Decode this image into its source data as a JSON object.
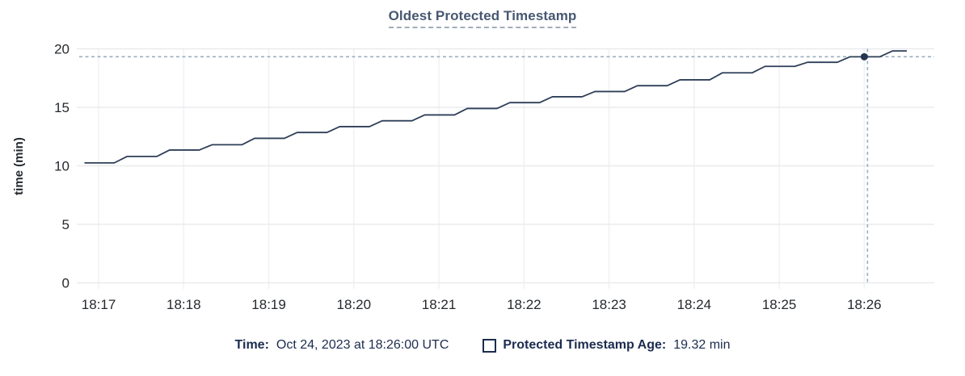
{
  "title": {
    "text": "Oldest Protected Timestamp"
  },
  "chart_data": {
    "type": "line",
    "title": "Oldest Protected Timestamp",
    "xlabel": "",
    "ylabel": "time (min)",
    "ylim": [
      0,
      20
    ],
    "y_ticks": [
      0,
      5,
      10,
      15,
      20
    ],
    "x_ticks": [
      "18:17",
      "18:18",
      "18:19",
      "18:20",
      "18:21",
      "18:22",
      "18:23",
      "18:24",
      "18:25",
      "18:26"
    ],
    "x_tick_offsets_s": [
      10,
      70,
      130,
      190,
      250,
      310,
      370,
      430,
      490,
      550
    ],
    "x_start_time": "18:16:50",
    "grid": true,
    "legend_position": "bottom",
    "series": [
      {
        "name": "Protected Timestamp Age",
        "unit": "min",
        "points": [
          [
            0,
            10.25
          ],
          [
            21,
            10.25
          ],
          [
            30,
            10.8
          ],
          [
            51,
            10.8
          ],
          [
            60,
            11.35
          ],
          [
            81,
            11.35
          ],
          [
            90,
            11.8
          ],
          [
            111,
            11.8
          ],
          [
            120,
            12.35
          ],
          [
            141,
            12.35
          ],
          [
            150,
            12.85
          ],
          [
            171,
            12.85
          ],
          [
            180,
            13.35
          ],
          [
            201,
            13.35
          ],
          [
            210,
            13.85
          ],
          [
            231,
            13.85
          ],
          [
            240,
            14.35
          ],
          [
            261,
            14.35
          ],
          [
            270,
            14.9
          ],
          [
            291,
            14.9
          ],
          [
            300,
            15.4
          ],
          [
            321,
            15.4
          ],
          [
            330,
            15.9
          ],
          [
            351,
            15.9
          ],
          [
            360,
            16.35
          ],
          [
            381,
            16.35
          ],
          [
            390,
            16.85
          ],
          [
            411,
            16.85
          ],
          [
            420,
            17.35
          ],
          [
            441,
            17.35
          ],
          [
            450,
            17.95
          ],
          [
            471,
            17.95
          ],
          [
            480,
            18.5
          ],
          [
            501,
            18.5
          ],
          [
            510,
            18.85
          ],
          [
            531,
            18.85
          ],
          [
            540,
            19.32
          ],
          [
            561,
            19.32
          ],
          [
            570,
            19.82
          ],
          [
            580,
            19.82
          ]
        ]
      }
    ],
    "crosshair": {
      "time": "18:26:00",
      "t_offset_s": 550,
      "value": 19.32
    }
  },
  "legend": {
    "time_label": "Time:",
    "time_value": "Oct 24, 2023 at 18:26:00 UTC",
    "series_label": "Protected Timestamp Age:",
    "series_value": "19.32 min"
  },
  "colors": {
    "title": "#475872",
    "title_underline": "#9fadbb",
    "series_line": "#2e3f58",
    "marker": "#26354f",
    "crosshair": "#9bafc0",
    "grid_horizontal": "#e9ebee",
    "grid_vertical": "#f1f2f4",
    "tick_label": "#25292e",
    "legend_text": "#1c2c4f"
  }
}
